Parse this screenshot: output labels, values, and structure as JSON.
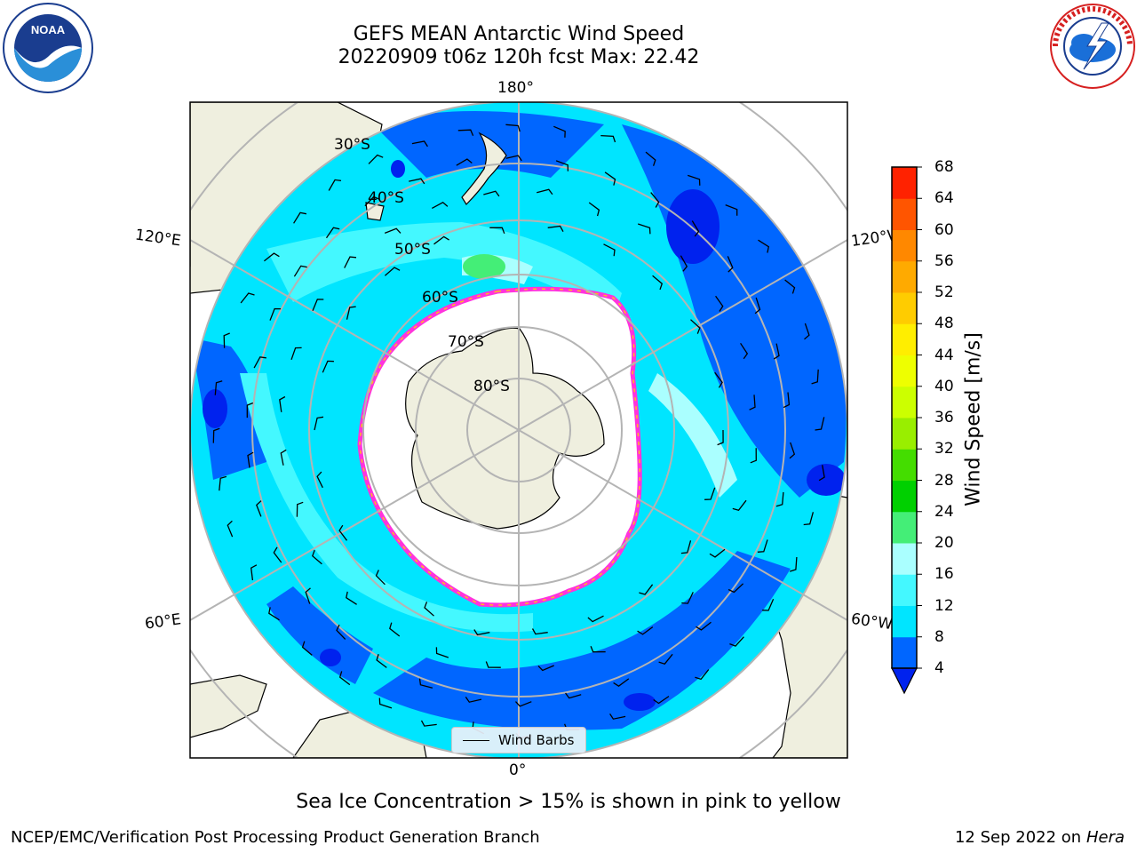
{
  "header": {
    "title_line1": "GEFS MEAN Antarctic Wind Speed",
    "title_line2": "20220909 t06z 120h fcst   Max: 22.42"
  },
  "map": {
    "longitude_labels": {
      "top": "180°",
      "bottom": "0°",
      "upper_left": "120°E",
      "lower_left": "60°E",
      "upper_right": "120°W",
      "lower_right": "60°W"
    },
    "latitude_labels": [
      "30°S",
      "40°S",
      "50°S",
      "60°S",
      "70°S",
      "80°S"
    ],
    "legend_label": "Wind Barbs"
  },
  "colorbar": {
    "title": "Wind Speed [m/s]",
    "ticks": [
      "4",
      "8",
      "12",
      "16",
      "20",
      "24",
      "28",
      "32",
      "36",
      "40",
      "44",
      "48",
      "52",
      "56",
      "60",
      "64",
      "68"
    ],
    "colors": [
      "#0066ff",
      "#00e5ff",
      "#44f8ff",
      "#aaffff",
      "#44ee77",
      "#00d000",
      "#44dd00",
      "#99ee00",
      "#ccff00",
      "#eeff00",
      "#ffee00",
      "#ffcc00",
      "#ffaa00",
      "#ff8800",
      "#ff5500",
      "#ff2200"
    ],
    "under_color": "#0022ee"
  },
  "footer": {
    "subtitle": "Sea Ice Concentration > 15% is shown in pink to yellow",
    "credit": "NCEP/EMC/Verification Post Processing Product Generation Branch",
    "date": "12 Sep 2022 on",
    "machine": "Hera"
  },
  "logos": {
    "left": "noaa-logo",
    "right": "nws-logo"
  }
}
